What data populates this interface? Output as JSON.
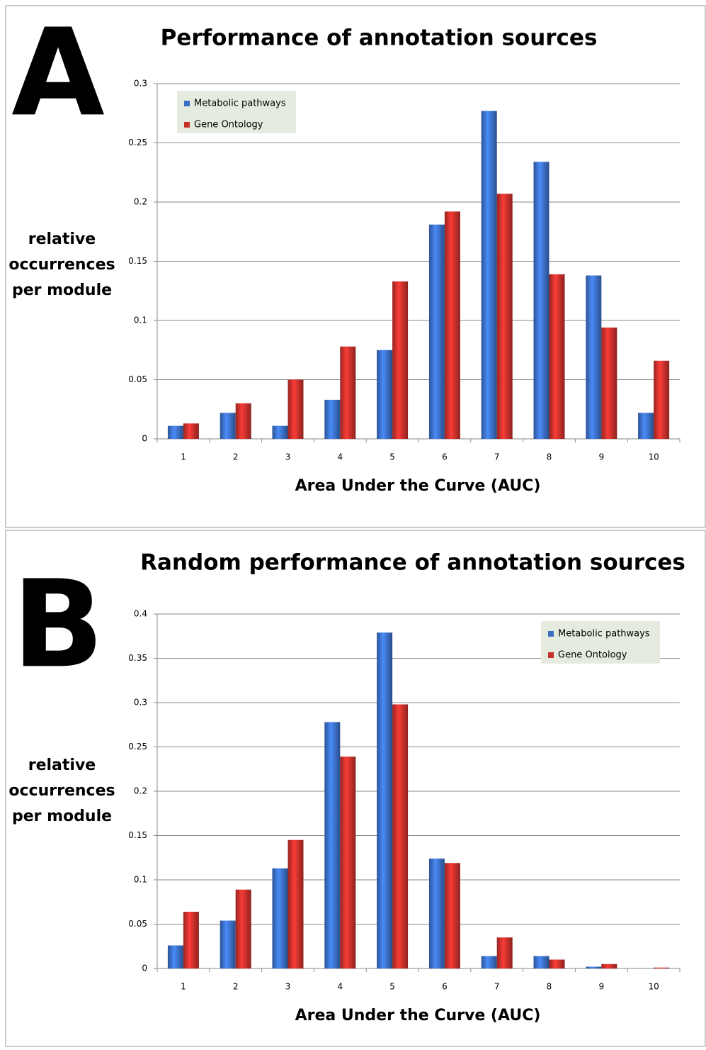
{
  "chart_data": [
    {
      "type": "bar",
      "panel_label": "A",
      "title": "Performance of annotation sources",
      "xlabel": "Area Under the Curve (AUC)",
      "ylabel": "relative occurrences per module",
      "categories": [
        "1",
        "2",
        "3",
        "4",
        "5",
        "6",
        "7",
        "8",
        "9",
        "10"
      ],
      "series": [
        {
          "name": "Metabolic pathways",
          "color": "#3b6fc6",
          "values": [
            0.011,
            0.022,
            0.011,
            0.033,
            0.075,
            0.181,
            0.277,
            0.234,
            0.138,
            0.022
          ]
        },
        {
          "name": "Gene Ontology",
          "color": "#c8302c",
          "values": [
            0.013,
            0.03,
            0.05,
            0.078,
            0.133,
            0.192,
            0.207,
            0.139,
            0.094,
            0.066
          ]
        }
      ],
      "ylim": [
        0,
        0.3
      ],
      "yticks": [
        0,
        0.05,
        0.1,
        0.15,
        0.2,
        0.25,
        0.3
      ],
      "grid": true,
      "legend": "upper left"
    },
    {
      "type": "bar",
      "panel_label": "B",
      "title": "Random performance of annotation sources",
      "xlabel": "Area Under the Curve (AUC)",
      "ylabel": "relative occurrences per module",
      "categories": [
        "1",
        "2",
        "3",
        "4",
        "5",
        "6",
        "7",
        "8",
        "9",
        "10"
      ],
      "series": [
        {
          "name": "Metabolic pathways",
          "color": "#3b6fc6",
          "values": [
            0.026,
            0.054,
            0.113,
            0.278,
            0.379,
            0.124,
            0.014,
            0.014,
            0.002,
            0
          ]
        },
        {
          "name": "Gene Ontology",
          "color": "#c8302c",
          "values": [
            0.064,
            0.089,
            0.145,
            0.239,
            0.298,
            0.119,
            0.035,
            0.01,
            0.005,
            0.001
          ]
        }
      ],
      "ylim": [
        0,
        0.4
      ],
      "yticks": [
        0,
        0.05,
        0.1,
        0.15,
        0.2,
        0.25,
        0.3,
        0.35,
        0.4
      ],
      "grid": true,
      "legend": "upper right"
    }
  ]
}
